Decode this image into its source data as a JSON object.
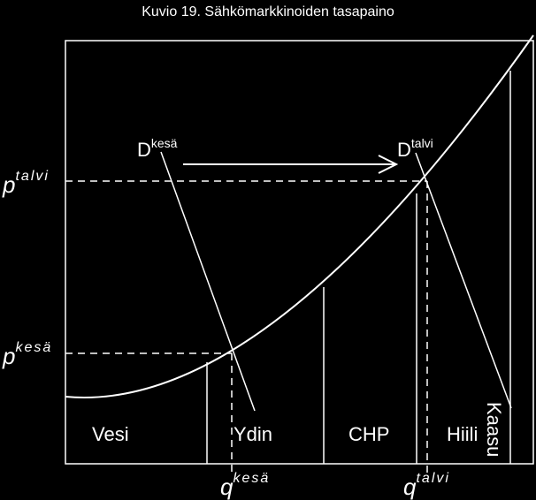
{
  "title": "Kuvio 19. Sähkömarkkinoiden tasapaino",
  "colors": {
    "background": "#000000",
    "foreground": "#ffffff"
  },
  "price_labels": {
    "winter": {
      "base": "p",
      "sup": "talvi"
    },
    "summer": {
      "base": "p",
      "sup": "kesä"
    }
  },
  "quantity_labels": {
    "summer": {
      "base": "q",
      "sup": "kesä"
    },
    "winter": {
      "base": "q",
      "sup": "talvi"
    }
  },
  "demand_labels": {
    "summer": {
      "base": "D",
      "sup": "kesä"
    },
    "winter": {
      "base": "D",
      "sup": "talvi"
    }
  },
  "energy_sources": [
    "Vesi",
    "Ydin",
    "CHP",
    "Hiili",
    "Kaasu"
  ]
}
